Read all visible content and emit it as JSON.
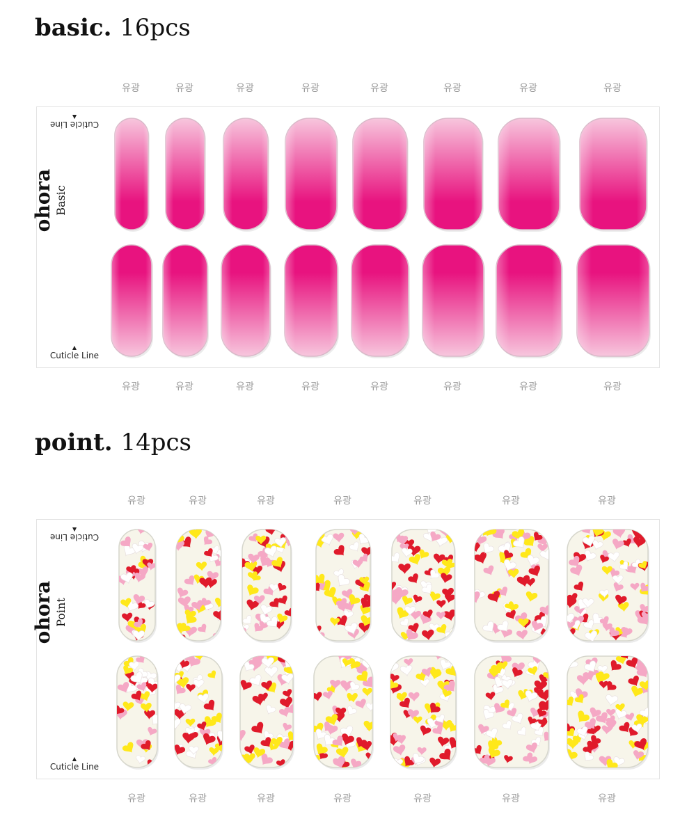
{
  "basic_section": {
    "name": "basic.",
    "count": "16pcs",
    "brand": "ohora",
    "line": "Basic",
    "cuticle_label": "Cuticle Line",
    "finish_label": "유광",
    "tip_count_top": 8,
    "tip_count_bottom": 8,
    "gradient_colors": [
      "#f7c6dd",
      "#e8137f"
    ]
  },
  "point_section": {
    "name": "point.",
    "count": "14pcs",
    "brand": "ohora",
    "line": "Point",
    "cuticle_label": "Cuticle Line",
    "finish_label": "유광",
    "tip_count_top": 7,
    "tip_count_bottom": 7,
    "heart_colors": [
      "#e01a2b",
      "#f5a8c5",
      "#ffe81a",
      "#ffffff"
    ],
    "base_color": "#f7f5ea"
  }
}
